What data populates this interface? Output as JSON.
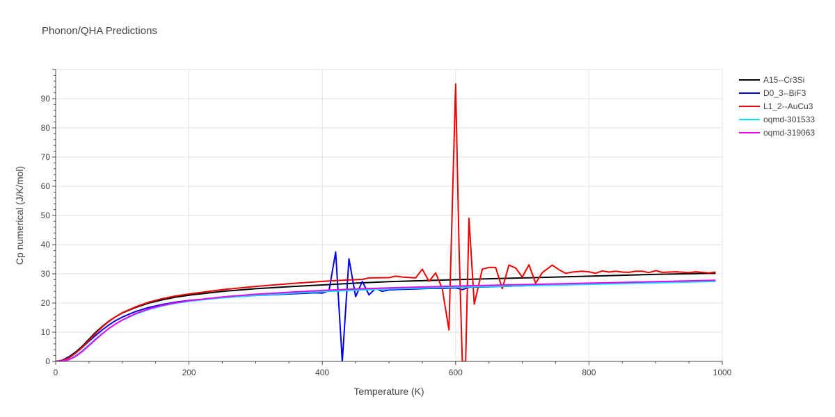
{
  "chart_data": {
    "type": "line",
    "title": "Phonon/QHA Predictions",
    "xlabel": "Temperature (K)",
    "ylabel": "Cp numerical (J/K/mol)",
    "xlim": [
      0,
      1000
    ],
    "ylim": [
      0,
      100
    ],
    "x_ticks": [
      0,
      200,
      400,
      600,
      800,
      1000
    ],
    "y_ticks": [
      0,
      10,
      20,
      30,
      40,
      50,
      60,
      70,
      80,
      90
    ],
    "grid": true,
    "legend_position": "top-right",
    "series": [
      {
        "name": "A15--Cr3Si",
        "color": "#000000",
        "x": [
          0,
          10,
          20,
          30,
          40,
          50,
          60,
          70,
          80,
          90,
          100,
          120,
          140,
          160,
          180,
          200,
          250,
          300,
          350,
          400,
          450,
          500,
          600,
          700,
          800,
          900,
          990
        ],
        "y": [
          0,
          0.4,
          1.6,
          3.2,
          5.2,
          7.6,
          10.0,
          12.0,
          13.8,
          15.3,
          16.6,
          18.5,
          20.0,
          21.1,
          22.0,
          22.7,
          24.0,
          24.9,
          25.6,
          26.2,
          26.8,
          27.3,
          28.0,
          28.6,
          29.2,
          29.8,
          30.2
        ]
      },
      {
        "name": "D0_3--BiF3",
        "color": "#0000ee",
        "x": [
          0,
          10,
          20,
          30,
          40,
          50,
          60,
          70,
          80,
          90,
          100,
          120,
          140,
          160,
          180,
          200,
          250,
          300,
          350,
          390,
          400,
          410,
          420,
          430,
          440,
          450,
          460,
          470,
          480,
          490,
          500,
          520,
          540,
          560,
          580,
          600,
          610,
          620,
          640,
          700,
          800,
          900,
          990
        ],
        "y": [
          0,
          0.4,
          1.4,
          2.9,
          4.8,
          6.9,
          8.9,
          10.8,
          12.5,
          14.0,
          15.2,
          17.1,
          18.5,
          19.5,
          20.3,
          20.9,
          21.8,
          22.6,
          23.1,
          23.5,
          23.4,
          24.2,
          37.5,
          0,
          35.2,
          22.2,
          27.4,
          22.8,
          25.0,
          24.0,
          24.5,
          24.7,
          24.8,
          25.0,
          25.0,
          25.2,
          24.6,
          25.4,
          25.5,
          25.9,
          26.5,
          27.0,
          27.6
        ]
      },
      {
        "name": "L1_2--AuCu3",
        "color": "#ee0000",
        "x": [
          0,
          10,
          20,
          30,
          40,
          50,
          60,
          70,
          80,
          90,
          100,
          120,
          140,
          160,
          180,
          200,
          250,
          300,
          350,
          400,
          430,
          460,
          470,
          500,
          510,
          520,
          540,
          550,
          560,
          570,
          580,
          590,
          600,
          605,
          610,
          615,
          620,
          628,
          640,
          650,
          660,
          670,
          680,
          690,
          700,
          710,
          720,
          730,
          745,
          755,
          765,
          775,
          790,
          800,
          810,
          820,
          830,
          840,
          850,
          860,
          870,
          880,
          890,
          900,
          910,
          930,
          950,
          960,
          980,
          990
        ],
        "y": [
          0,
          0.3,
          1.2,
          2.8,
          4.8,
          7.2,
          9.6,
          11.8,
          13.7,
          15.3,
          16.7,
          18.7,
          20.3,
          21.5,
          22.4,
          23.1,
          24.6,
          25.7,
          26.6,
          27.4,
          27.8,
          28.1,
          28.6,
          28.7,
          29.2,
          28.9,
          28.6,
          31.6,
          27.4,
          30.3,
          24.9,
          10.8,
          95.0,
          40.0,
          0,
          0,
          49.0,
          19.6,
          31.6,
          32.2,
          32.2,
          24.9,
          33.0,
          32.0,
          28.9,
          33.1,
          26.8,
          30.4,
          33.0,
          31.4,
          30.2,
          30.6,
          30.9,
          30.7,
          30.2,
          31.0,
          30.6,
          30.9,
          30.6,
          30.5,
          30.9,
          30.9,
          30.4,
          31.1,
          30.5,
          30.7,
          30.4,
          30.7,
          30.3,
          30.6
        ]
      },
      {
        "name": "oqmd-301533",
        "color": "#00e5ff",
        "x": [
          0,
          10,
          20,
          30,
          40,
          50,
          60,
          70,
          80,
          90,
          100,
          120,
          140,
          160,
          180,
          200,
          250,
          300,
          350,
          400,
          450,
          500,
          600,
          700,
          800,
          900,
          990
        ],
        "y": [
          0,
          0.1,
          0.7,
          1.9,
          3.7,
          5.7,
          7.7,
          9.6,
          11.3,
          12.8,
          14.1,
          16.2,
          17.8,
          19.0,
          19.9,
          20.6,
          21.8,
          22.6,
          23.3,
          23.9,
          24.4,
          24.8,
          25.4,
          25.9,
          26.4,
          26.9,
          27.4
        ]
      },
      {
        "name": "oqmd-319063",
        "color": "#ee00ee",
        "x": [
          0,
          10,
          20,
          30,
          40,
          50,
          60,
          70,
          80,
          90,
          100,
          120,
          140,
          160,
          180,
          200,
          250,
          300,
          350,
          400,
          450,
          500,
          600,
          700,
          800,
          900,
          990
        ],
        "y": [
          0,
          0.1,
          0.6,
          1.7,
          3.4,
          5.4,
          7.5,
          9.5,
          11.3,
          12.8,
          14.2,
          16.4,
          18.0,
          19.2,
          20.1,
          20.8,
          22.1,
          23.0,
          23.7,
          24.3,
          24.8,
          25.2,
          25.8,
          26.3,
          26.8,
          27.3,
          27.8
        ]
      }
    ]
  }
}
